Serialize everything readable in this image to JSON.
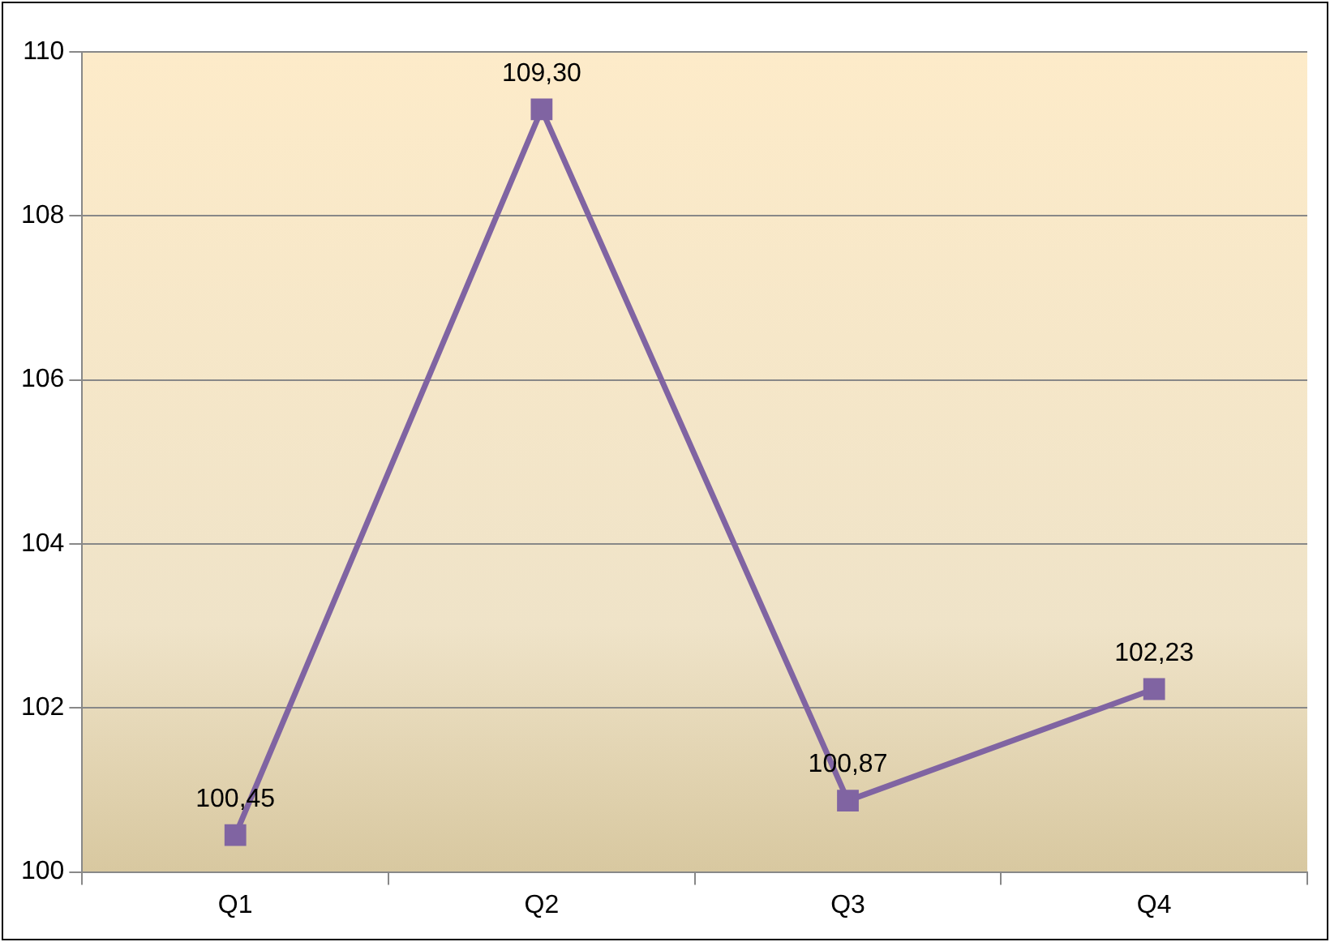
{
  "chart_data": {
    "type": "line",
    "categories": [
      "Q1",
      "Q2",
      "Q3",
      "Q4"
    ],
    "series": [
      {
        "color": "#8064a2",
        "values": [
          100.45,
          109.3,
          100.87,
          102.23
        ],
        "value_labels": [
          "100,45",
          "109,30",
          "100,87",
          "102,23"
        ]
      }
    ],
    "ylim": [
      100,
      110
    ],
    "yticks": [
      100,
      102,
      104,
      106,
      108,
      110
    ],
    "grid": "y",
    "legend": false,
    "marker": "square",
    "line_style": "solid"
  }
}
